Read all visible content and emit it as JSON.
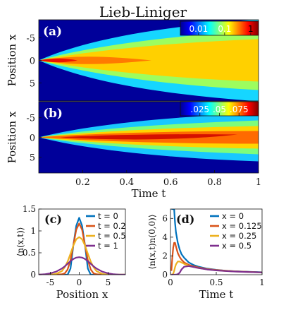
{
  "figure": {
    "title": "Lieb-Liniger"
  },
  "chart_data": [
    {
      "panel": "(a)",
      "type": "heatmap",
      "xlabel": "",
      "ylabel": "Position x",
      "x_range": [
        0,
        1
      ],
      "y_range": [
        -9,
        9
      ],
      "y_ticks": [
        "-5",
        "0",
        "5"
      ],
      "y_tick_values": [
        -5,
        0,
        5
      ],
      "colorbar": {
        "scale": "log",
        "tick_labels": [
          "0.01",
          "0.1",
          "1"
        ],
        "tick_values": [
          0.01,
          0.1,
          1
        ]
      },
      "colormap": "jet"
    },
    {
      "panel": "(b)",
      "type": "heatmap",
      "xlabel": "Time t",
      "ylabel": "Position x",
      "x_range": [
        0,
        1
      ],
      "x_ticks": [
        "0.2",
        "0.4",
        "0.6",
        "0.8",
        "1"
      ],
      "x_tick_values": [
        0.2,
        0.4,
        0.6,
        0.8,
        1
      ],
      "y_range": [
        -9,
        9
      ],
      "y_ticks": [
        "-5",
        "0",
        "5"
      ],
      "y_tick_values": [
        -5,
        0,
        5
      ],
      "colorbar": {
        "scale": "linear",
        "tick_labels": [
          ".025",
          ".05",
          ".075"
        ],
        "tick_values": [
          0.025,
          0.05,
          0.075
        ]
      },
      "colormap": "jet"
    },
    {
      "panel": "(c)",
      "type": "line",
      "xlabel": "Position x",
      "ylabel": "⟨n(x,t)⟩",
      "xlim": [
        -7,
        8
      ],
      "ylim": [
        0,
        1.5
      ],
      "x_ticks": [
        "-5",
        "0",
        "5"
      ],
      "x_tick_values": [
        -5,
        0,
        5
      ],
      "y_ticks": [
        "0",
        "0.5",
        "1",
        "1.5"
      ],
      "y_tick_values": [
        0,
        0.5,
        1,
        1.5
      ],
      "legend_position": "top-right",
      "x": [
        -7,
        -6,
        -5,
        -4,
        -3,
        -2.5,
        -2,
        -1.5,
        -1,
        -0.5,
        0,
        0.5,
        1,
        1.5,
        2,
        2.5,
        3,
        4,
        5,
        6,
        7,
        8
      ],
      "series": [
        {
          "name": "t = 0",
          "color": "#0072bd",
          "values": [
            0,
            0,
            0,
            0,
            0,
            0,
            0,
            0.14,
            0.68,
            1.12,
            1.3,
            1.12,
            0.68,
            0.14,
            0,
            0,
            0,
            0,
            0,
            0,
            0,
            0
          ]
        },
        {
          "name": "t = 0.2",
          "color": "#d95319",
          "values": [
            0,
            0,
            0,
            0,
            0.01,
            0.03,
            0.12,
            0.33,
            0.68,
            1.03,
            1.17,
            1.03,
            0.68,
            0.33,
            0.12,
            0.03,
            0.01,
            0,
            0,
            0,
            0,
            0
          ]
        },
        {
          "name": "t = 0.5",
          "color": "#edb120",
          "values": [
            0,
            0,
            0,
            0.02,
            0.08,
            0.17,
            0.3,
            0.48,
            0.67,
            0.81,
            0.86,
            0.81,
            0.67,
            0.48,
            0.3,
            0.17,
            0.08,
            0.02,
            0,
            0,
            0,
            0
          ]
        },
        {
          "name": "t = 1",
          "color": "#7e2f8e",
          "values": [
            0,
            0.01,
            0.03,
            0.07,
            0.14,
            0.19,
            0.25,
            0.31,
            0.36,
            0.39,
            0.4,
            0.39,
            0.36,
            0.31,
            0.25,
            0.19,
            0.14,
            0.07,
            0.03,
            0.01,
            0,
            0
          ]
        }
      ]
    },
    {
      "panel": "(d)",
      "type": "line",
      "xlabel": "Time t",
      "ylabel": "⟨n(x,t)n(0,0)⟩",
      "xlim": [
        0,
        1
      ],
      "ylim": [
        0,
        7
      ],
      "x_ticks": [
        "0",
        "0.5",
        "1"
      ],
      "x_tick_values": [
        0,
        0.5,
        1
      ],
      "y_ticks": [
        "0",
        "2",
        "4",
        "6"
      ],
      "y_tick_values": [
        0,
        2,
        4,
        6
      ],
      "legend_position": "top-right",
      "x": [
        0.01,
        0.02,
        0.03,
        0.04,
        0.05,
        0.06,
        0.08,
        0.1,
        0.12,
        0.15,
        0.2,
        0.25,
        0.3,
        0.4,
        0.5,
        0.6,
        0.7,
        0.8,
        0.9,
        1.0
      ],
      "series": [
        {
          "name": "x = 0",
          "color": "#0072bd",
          "values": [
            7,
            7,
            7,
            7,
            5.5,
            4.5,
            3.4,
            2.7,
            2.2,
            1.8,
            1.3,
            1.05,
            0.87,
            0.65,
            0.52,
            0.43,
            0.37,
            0.33,
            0.29,
            0.26
          ]
        },
        {
          "name": "x = 0.125",
          "color": "#d95319",
          "values": [
            0.4,
            1.8,
            2.9,
            3.4,
            3.4,
            3.0,
            2.3,
            1.9,
            1.6,
            1.3,
            1.05,
            0.9,
            0.78,
            0.6,
            0.5,
            0.42,
            0.36,
            0.32,
            0.28,
            0.25
          ]
        },
        {
          "name": "x = 0.25",
          "color": "#edb120",
          "values": [
            0,
            0.02,
            0.1,
            0.4,
            0.8,
            1.1,
            1.4,
            1.4,
            1.3,
            1.15,
            0.95,
            0.82,
            0.72,
            0.57,
            0.47,
            0.4,
            0.35,
            0.31,
            0.27,
            0.24
          ]
        },
        {
          "name": "x = 0.5",
          "color": "#7e2f8e",
          "values": [
            0,
            0,
            0,
            0,
            0,
            0.01,
            0.05,
            0.2,
            0.55,
            0.85,
            0.92,
            0.82,
            0.72,
            0.56,
            0.46,
            0.39,
            0.34,
            0.3,
            0.27,
            0.24
          ]
        }
      ]
    }
  ]
}
